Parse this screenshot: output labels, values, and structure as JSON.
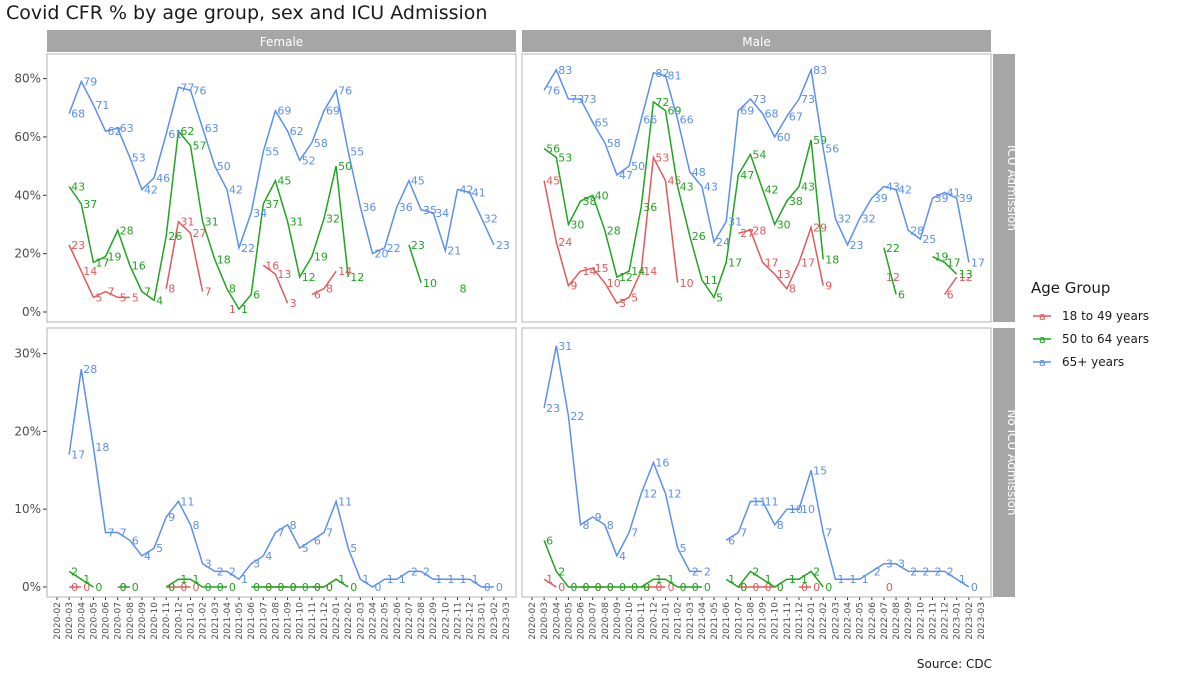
{
  "title": "Covid CFR % by age group, sex and ICU Admission",
  "caption": "Source: CDC",
  "legend": {
    "title": "Age Group",
    "items": [
      {
        "label": "18 to 49 years",
        "color": "#e5585a"
      },
      {
        "label": "50 to 64 years",
        "color": "#1fa51f"
      },
      {
        "label": "65+ years",
        "color": "#5b8ff0"
      }
    ]
  },
  "chart_data": {
    "type": "line",
    "facet_columns": [
      "Female",
      "Male"
    ],
    "facet_rows": [
      "ICU Admission",
      "No ICU Admission"
    ],
    "x": [
      "2020-02",
      "2020-03",
      "2020-04",
      "2020-05",
      "2020-06",
      "2020-07",
      "2020-08",
      "2020-09",
      "2020-10",
      "2020-11",
      "2020-12",
      "2021-01",
      "2021-02",
      "2021-03",
      "2021-04",
      "2021-05",
      "2021-06",
      "2021-07",
      "2021-08",
      "2021-09",
      "2021-10",
      "2021-11",
      "2021-12",
      "2022-01",
      "2022-02",
      "2022-03",
      "2022-04",
      "2022-05",
      "2022-06",
      "2022-07",
      "2022-08",
      "2022-09",
      "2022-10",
      "2022-11",
      "2022-12",
      "2023-01",
      "2023-02",
      "2023-03"
    ],
    "ylim": {
      "ICU Admission": [
        0,
        85
      ],
      "No ICU Admission": [
        0,
        32
      ]
    },
    "yticks": {
      "ICU Admission": [
        0,
        20,
        40,
        60,
        80
      ],
      "No ICU Admission": [
        0,
        10,
        20,
        30
      ]
    },
    "ytick_suffix": "%",
    "panels": [
      {
        "sex": "Female",
        "icu": "ICU Admission",
        "series": [
          {
            "name": "18 to 49 years",
            "values": [
              null,
              23,
              14,
              5,
              7,
              5,
              5,
              null,
              null,
              8,
              31,
              27,
              7,
              null,
              1,
              null,
              null,
              16,
              13,
              3,
              null,
              6,
              8,
              14,
              null,
              null,
              null,
              null,
              null,
              null,
              null,
              null,
              null,
              null,
              null,
              null,
              null,
              null
            ]
          },
          {
            "name": "50 to 64 years",
            "values": [
              null,
              43,
              37,
              17,
              19,
              28,
              16,
              7,
              4,
              26,
              62,
              57,
              31,
              18,
              8,
              1,
              6,
              37,
              45,
              31,
              12,
              19,
              32,
              50,
              12,
              null,
              null,
              null,
              null,
              23,
              10,
              null,
              null,
              8,
              null,
              null,
              null,
              null
            ]
          },
          {
            "name": "65+ years",
            "values": [
              null,
              68,
              79,
              71,
              62,
              63,
              53,
              42,
              46,
              61,
              77,
              76,
              63,
              50,
              42,
              22,
              34,
              55,
              69,
              62,
              52,
              58,
              69,
              76,
              55,
              36,
              20,
              22,
              36,
              45,
              35,
              34,
              21,
              42,
              41,
              32,
              23,
              null
            ]
          }
        ]
      },
      {
        "sex": "Male",
        "icu": "ICU Admission",
        "series": [
          {
            "name": "18 to 49 years",
            "values": [
              null,
              45,
              24,
              9,
              14,
              15,
              10,
              3,
              5,
              14,
              53,
              45,
              10,
              null,
              null,
              null,
              null,
              27,
              28,
              17,
              13,
              8,
              17,
              29,
              9,
              null,
              null,
              null,
              null,
              12,
              null,
              null,
              null,
              null,
              6,
              12,
              null,
              null
            ]
          },
          {
            "name": "50 to 64 years",
            "values": [
              null,
              56,
              53,
              30,
              38,
              40,
              28,
              12,
              14,
              36,
              72,
              69,
              43,
              26,
              11,
              5,
              17,
              47,
              54,
              42,
              30,
              38,
              43,
              59,
              18,
              null,
              null,
              null,
              null,
              22,
              6,
              null,
              null,
              19,
              17,
              13,
              null,
              null
            ]
          },
          {
            "name": "65+ years",
            "values": [
              null,
              76,
              83,
              73,
              73,
              65,
              58,
              47,
              50,
              66,
              82,
              81,
              66,
              48,
              43,
              24,
              31,
              69,
              73,
              68,
              60,
              67,
              73,
              83,
              56,
              32,
              23,
              32,
              39,
              43,
              42,
              28,
              25,
              39,
              41,
              39,
              17,
              null
            ]
          }
        ]
      },
      {
        "sex": "Female",
        "icu": "No ICU Admission",
        "series": [
          {
            "name": "18 to 49 years",
            "values": [
              null,
              0,
              0,
              null,
              null,
              0,
              null,
              null,
              null,
              0,
              0,
              0,
              null,
              null,
              null,
              null,
              null,
              0,
              0,
              0,
              null,
              0,
              0,
              null,
              null,
              null,
              null,
              null,
              null,
              null,
              null,
              null,
              null,
              null,
              null,
              null,
              null,
              null
            ]
          },
          {
            "name": "50 to 64 years",
            "values": [
              null,
              2,
              1,
              0,
              null,
              0,
              0,
              null,
              null,
              0,
              1,
              1,
              0,
              0,
              0,
              null,
              0,
              0,
              0,
              0,
              0,
              0,
              0,
              1,
              0,
              null,
              null,
              null,
              null,
              null,
              null,
              null,
              null,
              null,
              null,
              null,
              null,
              null
            ]
          },
          {
            "name": "65+ years",
            "values": [
              null,
              17,
              28,
              18,
              7,
              7,
              6,
              4,
              5,
              9,
              11,
              8,
              3,
              2,
              2,
              1,
              3,
              4,
              7,
              8,
              5,
              6,
              7,
              11,
              5,
              1,
              0,
              1,
              1,
              2,
              2,
              1,
              1,
              1,
              1,
              0,
              0,
              null
            ]
          }
        ]
      },
      {
        "sex": "Male",
        "icu": "No ICU Admission",
        "series": [
          {
            "name": "18 to 49 years",
            "values": [
              null,
              1,
              0,
              null,
              0,
              0,
              0,
              null,
              null,
              0,
              0,
              0,
              null,
              null,
              null,
              null,
              null,
              0,
              0,
              0,
              0,
              null,
              0,
              0,
              null,
              null,
              null,
              null,
              null,
              0,
              null,
              null,
              null,
              null,
              null,
              null,
              null,
              null
            ]
          },
          {
            "name": "50 to 64 years",
            "values": [
              null,
              6,
              2,
              0,
              0,
              0,
              0,
              0,
              0,
              0,
              1,
              1,
              0,
              0,
              0,
              null,
              1,
              0,
              2,
              1,
              0,
              1,
              1,
              2,
              0,
              null,
              null,
              null,
              null,
              null,
              null,
              null,
              null,
              null,
              null,
              null,
              null,
              null
            ]
          },
          {
            "name": "65+ years",
            "values": [
              null,
              23,
              31,
              22,
              8,
              9,
              8,
              4,
              7,
              12,
              16,
              12,
              5,
              2,
              2,
              null,
              6,
              7,
              11,
              11,
              8,
              10,
              10,
              15,
              7,
              1,
              1,
              1,
              2,
              3,
              3,
              2,
              2,
              2,
              2,
              1,
              0,
              null
            ]
          }
        ]
      }
    ]
  }
}
